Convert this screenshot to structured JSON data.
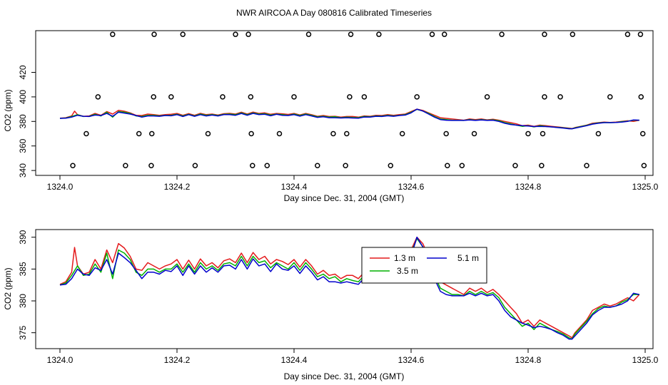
{
  "title": "NWR AIRCOA A  Day 080816  Calibrated Timeseries",
  "chart_data": [
    {
      "type": "line+scatter",
      "xlabel": "Day since Dec. 31, 2004 (GMT)",
      "ylabel": "CO2 (ppm)",
      "xlim": [
        1324.0,
        1325.0
      ],
      "ylim": [
        336,
        454
      ],
      "xticks": [
        1324.0,
        1324.2,
        1324.4,
        1324.6,
        1324.8,
        1325.0
      ],
      "xtick_labels": [
        "1324.0",
        "1324.2",
        "1324.4",
        "1324.6",
        "1324.8",
        "1325.0"
      ],
      "yticks": [
        340,
        380,
        420
      ],
      "ytick_labels": [
        "340",
        "380",
        "420"
      ],
      "yticks_minor": [
        360,
        400
      ],
      "ytick_labels_minor": [
        "360",
        "400"
      ],
      "series_colors": [
        "#e41a1c",
        "#00b000",
        "#0000cc"
      ],
      "markers": {
        "y451": [
          1324.09,
          1324.161,
          1324.21,
          1324.3,
          1324.322,
          1324.425,
          1324.497,
          1324.545,
          1324.636,
          1324.657,
          1324.755,
          1324.828,
          1324.876,
          1324.97,
          1324.992
        ],
        "y400": [
          1324.065,
          1324.16,
          1324.19,
          1324.278,
          1324.326,
          1324.4,
          1324.495,
          1324.52,
          1324.61,
          1324.73,
          1324.828,
          1324.855,
          1324.94,
          1324.993
        ],
        "y370": [
          1324.045,
          1324.135,
          1324.157,
          1324.253,
          1324.327,
          1324.375,
          1324.467,
          1324.49,
          1324.585,
          1324.66,
          1324.708,
          1324.8,
          1324.825,
          1324.92,
          1324.996
        ],
        "y344": [
          1324.022,
          1324.112,
          1324.156,
          1324.231,
          1324.329,
          1324.354,
          1324.44,
          1324.488,
          1324.565,
          1324.662,
          1324.687,
          1324.778,
          1324.823,
          1324.9,
          1324.998
        ]
      }
    },
    {
      "type": "line",
      "xlabel": "Day since Dec. 31, 2004 (GMT)",
      "ylabel": "CO2 (ppm)",
      "xlim": [
        1324.0,
        1325.0
      ],
      "ylim": [
        372.5,
        391.2
      ],
      "xticks": [
        1324.0,
        1324.2,
        1324.4,
        1324.6,
        1324.8,
        1325.0
      ],
      "xtick_labels": [
        "1324.0",
        "1324.2",
        "1324.4",
        "1324.6",
        "1324.8",
        "1325.0"
      ],
      "yticks": [
        375,
        380,
        385,
        390
      ],
      "ytick_labels": [
        "375",
        "380",
        "385",
        "390"
      ],
      "legend": {
        "placement": "center-right",
        "entries": [
          {
            "label": "1.3 m",
            "color": "#e41a1c"
          },
          {
            "label": "5.1 m",
            "color": "#0000cc"
          },
          {
            "label": "3.5 m",
            "color": "#00b000"
          }
        ]
      },
      "series": [
        {
          "name": "1.3 m",
          "color": "#e41a1c",
          "x": [
            1324.0,
            1324.01,
            1324.02,
            1324.025,
            1324.03,
            1324.04,
            1324.05,
            1324.06,
            1324.07,
            1324.08,
            1324.09,
            1324.1,
            1324.11,
            1324.12,
            1324.13,
            1324.14,
            1324.15,
            1324.16,
            1324.17,
            1324.18,
            1324.19,
            1324.2,
            1324.21,
            1324.22,
            1324.23,
            1324.24,
            1324.25,
            1324.26,
            1324.27,
            1324.28,
            1324.29,
            1324.3,
            1324.31,
            1324.32,
            1324.33,
            1324.34,
            1324.35,
            1324.36,
            1324.37,
            1324.38,
            1324.39,
            1324.4,
            1324.41,
            1324.42,
            1324.43,
            1324.44,
            1324.45,
            1324.46,
            1324.47,
            1324.48,
            1324.49,
            1324.5,
            1324.51,
            1324.52,
            1324.53,
            1324.54,
            1324.55,
            1324.56,
            1324.57,
            1324.58,
            1324.59,
            1324.6,
            1324.61,
            1324.62,
            1324.63,
            1324.64,
            1324.65,
            1324.66,
            1324.67,
            1324.68,
            1324.69,
            1324.7,
            1324.71,
            1324.72,
            1324.73,
            1324.74,
            1324.75,
            1324.76,
            1324.77,
            1324.78,
            1324.79,
            1324.8,
            1324.81,
            1324.82,
            1324.83,
            1324.84,
            1324.85,
            1324.86,
            1324.87,
            1324.875,
            1324.88,
            1324.89,
            1324.9,
            1324.91,
            1324.92,
            1324.93,
            1324.94,
            1324.95,
            1324.96,
            1324.97,
            1324.98,
            1324.99
          ],
          "values": [
            382.6,
            383.0,
            384.5,
            388.4,
            385.5,
            384.2,
            384.5,
            386.5,
            385.0,
            388.0,
            386.0,
            389.0,
            388.3,
            387.0,
            385.0,
            384.8,
            386.0,
            385.5,
            385.0,
            385.5,
            385.8,
            386.5,
            385.0,
            386.4,
            385.0,
            386.6,
            385.5,
            386.0,
            385.2,
            386.3,
            386.6,
            386.0,
            387.5,
            386.0,
            387.6,
            386.5,
            387.0,
            385.8,
            386.5,
            386.2,
            385.7,
            386.5,
            385.3,
            386.5,
            385.5,
            384.2,
            384.8,
            384.0,
            384.2,
            383.5,
            384.0,
            384.0,
            383.5,
            384.5,
            384.2,
            385.0,
            384.8,
            385.5,
            385.0,
            385.5,
            386.0,
            388.0,
            390.0,
            389.0,
            387.0,
            385.0,
            383.0,
            382.5,
            382.0,
            381.5,
            381.0,
            382.0,
            381.5,
            382.0,
            381.3,
            381.8,
            381.0,
            380.0,
            379.0,
            378.0,
            376.5,
            377.0,
            376.0,
            377.0,
            376.5,
            376.0,
            375.5,
            375.0,
            374.5,
            374.2,
            375.0,
            376.0,
            377.0,
            378.5,
            379.0,
            379.5,
            379.2,
            379.5,
            380.0,
            380.5,
            380.0,
            381.0
          ]
        },
        {
          "name": "3.5 m",
          "color": "#00b000",
          "x": [
            1324.0,
            1324.01,
            1324.02,
            1324.03,
            1324.04,
            1324.05,
            1324.06,
            1324.07,
            1324.08,
            1324.09,
            1324.1,
            1324.11,
            1324.12,
            1324.13,
            1324.14,
            1324.15,
            1324.16,
            1324.17,
            1324.18,
            1324.19,
            1324.2,
            1324.21,
            1324.22,
            1324.23,
            1324.24,
            1324.25,
            1324.26,
            1324.27,
            1324.28,
            1324.29,
            1324.3,
            1324.31,
            1324.32,
            1324.33,
            1324.34,
            1324.35,
            1324.36,
            1324.37,
            1324.38,
            1324.39,
            1324.4,
            1324.41,
            1324.42,
            1324.43,
            1324.44,
            1324.45,
            1324.46,
            1324.47,
            1324.48,
            1324.49,
            1324.5,
            1324.51,
            1324.52,
            1324.53,
            1324.54,
            1324.55,
            1324.56,
            1324.57,
            1324.58,
            1324.59,
            1324.6,
            1324.61,
            1324.62,
            1324.63,
            1324.64,
            1324.65,
            1324.66,
            1324.67,
            1324.68,
            1324.69,
            1324.7,
            1324.71,
            1324.72,
            1324.73,
            1324.74,
            1324.75,
            1324.76,
            1324.77,
            1324.78,
            1324.79,
            1324.8,
            1324.81,
            1324.82,
            1324.83,
            1324.84,
            1324.85,
            1324.86,
            1324.87,
            1324.875,
            1324.88,
            1324.89,
            1324.9,
            1324.91,
            1324.92,
            1324.93,
            1324.94,
            1324.95,
            1324.96,
            1324.97,
            1324.98,
            1324.99
          ],
          "values": [
            382.5,
            382.8,
            384.0,
            385.5,
            384.0,
            384.2,
            385.8,
            384.5,
            387.5,
            383.5,
            388.0,
            387.5,
            386.5,
            384.5,
            384.0,
            385.0,
            385.0,
            384.5,
            385.0,
            385.0,
            385.8,
            384.5,
            385.8,
            384.5,
            386.0,
            385.0,
            385.5,
            384.8,
            385.8,
            386.0,
            385.5,
            387.0,
            385.5,
            387.0,
            386.0,
            386.3,
            385.2,
            386.0,
            385.5,
            385.0,
            386.0,
            384.8,
            386.0,
            385.0,
            383.8,
            384.2,
            383.5,
            383.8,
            383.0,
            383.5,
            383.2,
            383.0,
            384.0,
            383.8,
            384.5,
            384.3,
            385.0,
            384.5,
            385.0,
            385.5,
            387.5,
            389.8,
            388.5,
            386.5,
            384.0,
            382.0,
            381.5,
            381.0,
            381.0,
            380.8,
            381.5,
            381.0,
            381.5,
            381.0,
            381.3,
            380.5,
            379.0,
            378.0,
            377.0,
            376.0,
            376.5,
            375.5,
            376.5,
            376.0,
            375.5,
            375.2,
            374.8,
            374.2,
            374.0,
            374.8,
            375.8,
            376.8,
            378.0,
            378.8,
            379.2,
            379.0,
            379.2,
            379.8,
            380.2,
            381.0,
            381.0
          ]
        },
        {
          "name": "5.1 m",
          "color": "#0000cc",
          "x": [
            1324.0,
            1324.01,
            1324.02,
            1324.03,
            1324.04,
            1324.05,
            1324.06,
            1324.07,
            1324.08,
            1324.09,
            1324.1,
            1324.11,
            1324.12,
            1324.13,
            1324.14,
            1324.15,
            1324.16,
            1324.17,
            1324.18,
            1324.19,
            1324.2,
            1324.21,
            1324.22,
            1324.23,
            1324.24,
            1324.25,
            1324.26,
            1324.27,
            1324.28,
            1324.29,
            1324.3,
            1324.31,
            1324.32,
            1324.33,
            1324.34,
            1324.35,
            1324.36,
            1324.37,
            1324.38,
            1324.39,
            1324.4,
            1324.41,
            1324.42,
            1324.43,
            1324.44,
            1324.45,
            1324.46,
            1324.47,
            1324.48,
            1324.49,
            1324.5,
            1324.51,
            1324.52,
            1324.53,
            1324.54,
            1324.55,
            1324.56,
            1324.57,
            1324.58,
            1324.59,
            1324.6,
            1324.61,
            1324.62,
            1324.63,
            1324.64,
            1324.65,
            1324.66,
            1324.67,
            1324.68,
            1324.69,
            1324.7,
            1324.71,
            1324.72,
            1324.73,
            1324.74,
            1324.75,
            1324.76,
            1324.77,
            1324.78,
            1324.79,
            1324.8,
            1324.81,
            1324.82,
            1324.83,
            1324.84,
            1324.85,
            1324.86,
            1324.87,
            1324.875,
            1324.88,
            1324.89,
            1324.9,
            1324.91,
            1324.92,
            1324.93,
            1324.94,
            1324.95,
            1324.96,
            1324.97,
            1324.98,
            1324.99
          ],
          "values": [
            382.5,
            382.6,
            383.5,
            385.0,
            384.2,
            384.0,
            385.2,
            384.8,
            386.5,
            384.2,
            387.5,
            386.8,
            386.0,
            384.8,
            383.5,
            384.5,
            384.5,
            384.2,
            384.8,
            384.6,
            385.5,
            384.0,
            385.5,
            384.2,
            385.5,
            384.5,
            385.2,
            384.5,
            385.5,
            385.6,
            385.0,
            386.5,
            385.0,
            386.6,
            385.5,
            385.8,
            384.6,
            385.8,
            385.0,
            384.8,
            385.5,
            384.3,
            385.5,
            384.5,
            383.3,
            383.8,
            383.0,
            383.0,
            382.8,
            383.0,
            382.8,
            382.6,
            383.6,
            383.5,
            384.2,
            384.0,
            384.6,
            384.2,
            384.8,
            385.2,
            387.0,
            390.0,
            388.5,
            386.0,
            383.5,
            381.5,
            381.0,
            380.8,
            380.8,
            380.8,
            381.2,
            380.8,
            381.2,
            380.8,
            381.0,
            380.0,
            378.5,
            377.5,
            377.0,
            376.5,
            376.2,
            375.8,
            376.0,
            375.8,
            375.5,
            375.0,
            374.6,
            374.0,
            374.0,
            374.5,
            375.5,
            376.5,
            377.8,
            378.5,
            379.0,
            379.0,
            379.2,
            379.5,
            380.0,
            381.2,
            381.0
          ]
        }
      ]
    }
  ]
}
